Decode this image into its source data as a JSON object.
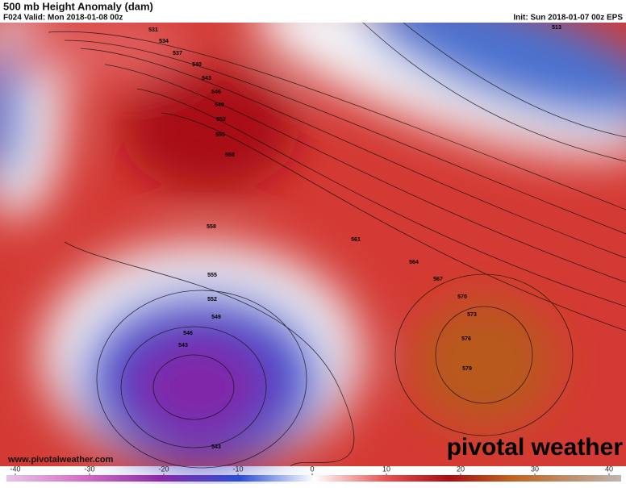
{
  "header": {
    "title": "500 mb Height Anomaly (dam)",
    "valid": "F024 Valid: Mon 2018-01-08 00z",
    "init": "Init: Sun 2018-01-07 00z EPS"
  },
  "map": {
    "contour_labels": [
      "531",
      "534",
      "537",
      "540",
      "543",
      "546",
      "549",
      "552",
      "555",
      "558",
      "558",
      "561",
      "564",
      "567",
      "570",
      "573",
      "576",
      "579",
      "555",
      "552",
      "549",
      "546",
      "543",
      "543",
      "513"
    ]
  },
  "footer": {
    "url": "www.pivotalweather.com",
    "brand": "pivotal weather"
  },
  "colorbar": {
    "ticks": [
      -40,
      -30,
      -20,
      -10,
      0,
      10,
      20,
      30,
      40
    ]
  }
}
